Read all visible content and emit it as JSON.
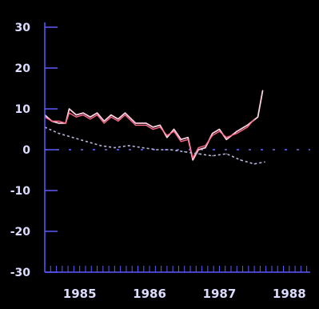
{
  "chart_data": {
    "type": "line",
    "title": "",
    "xlabel": "",
    "ylabel": "",
    "ylim": [
      -30,
      30
    ],
    "xlim": [
      1985.0,
      1988.8
    ],
    "yticks": [
      30,
      20,
      10,
      0,
      -10,
      -20,
      -30
    ],
    "ytick_labels": [
      "30",
      "20",
      "10",
      "0",
      "-10",
      "-20",
      "-30"
    ],
    "xtick_positions": [
      1985.5,
      1986.5,
      1987.5,
      1988.5
    ],
    "xtick_labels": [
      "1985",
      "1986",
      "1987",
      "1988"
    ],
    "minor_ticks_per_year": 12,
    "grid": false,
    "reference_line": 0,
    "colors": {
      "background": "#000000",
      "axis": "#5a5aff",
      "tick_text": "#dcdcff",
      "series_1": "#ffd0e0",
      "series_2": "#ff6688",
      "series_3": "#b8b8dd",
      "reference": "#6a6aff"
    },
    "series": [
      {
        "x": [
          1985.0,
          1985.1,
          1985.2,
          1985.3,
          1985.35,
          1985.45,
          1985.55,
          1985.65,
          1985.75,
          1985.85,
          1985.95,
          1986.05,
          1986.15,
          1986.3,
          1986.45,
          1986.55,
          1986.65,
          1986.75,
          1986.85,
          1986.95,
          1987.05,
          1987.12,
          1987.2,
          1987.3,
          1987.4,
          1987.5,
          1987.6,
          1987.75,
          1987.9,
          1988.05,
          1988.12
        ],
        "values": [
          8.5,
          7,
          6.5,
          6.5,
          10,
          8.5,
          9,
          8,
          9,
          7,
          8.5,
          7.5,
          9,
          6.5,
          6.5,
          5.5,
          6,
          3,
          5,
          2.5,
          3,
          -2.5,
          0,
          0.5,
          4,
          5,
          2.5,
          4.5,
          6,
          8,
          14.5
        ]
      },
      {
        "x": [
          1985.0,
          1985.1,
          1985.2,
          1985.3,
          1985.35,
          1985.45,
          1985.55,
          1985.65,
          1985.75,
          1985.85,
          1985.95,
          1986.05,
          1986.15,
          1986.3,
          1986.45,
          1986.55,
          1986.65,
          1986.75,
          1986.85,
          1986.95,
          1987.05,
          1987.12,
          1987.2,
          1987.3,
          1987.4,
          1987.5,
          1987.6,
          1987.75,
          1987.9,
          1988.0
        ],
        "values": [
          8,
          7,
          7,
          6.5,
          9,
          8,
          8.5,
          7.5,
          8.5,
          6.5,
          8,
          7,
          8.5,
          6,
          6,
          5,
          5.5,
          3.5,
          4.5,
          2,
          2.5,
          -2,
          0.5,
          1,
          3.5,
          4.5,
          3,
          4,
          5.5,
          7.5
        ]
      },
      {
        "x": [
          1985.0,
          1985.2,
          1985.4,
          1985.6,
          1985.8,
          1986.0,
          1986.2,
          1986.4,
          1986.6,
          1986.8,
          1987.0,
          1987.2,
          1987.4,
          1987.6,
          1987.8,
          1988.0,
          1988.15
        ],
        "values": [
          5.5,
          4,
          3,
          2,
          1,
          0.5,
          1,
          0.5,
          0,
          0,
          -0.5,
          -1,
          -1.5,
          -1,
          -2.5,
          -3.5,
          -3
        ]
      }
    ]
  }
}
